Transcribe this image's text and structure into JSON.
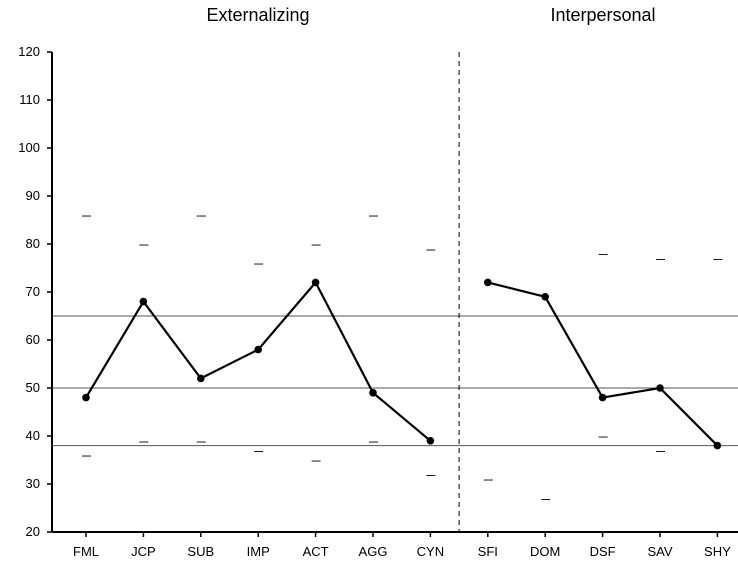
{
  "chart_data": {
    "type": "line",
    "groups": [
      {
        "title": "Externalizing",
        "categories": [
          "FML",
          "JCP",
          "SUB",
          "IMP",
          "ACT",
          "AGG",
          "CYN"
        ]
      },
      {
        "title": "Interpersonal",
        "categories": [
          "SFI",
          "DOM",
          "DSF",
          "SAV",
          "SHY"
        ]
      }
    ],
    "categories": [
      "FML",
      "JCP",
      "SUB",
      "IMP",
      "ACT",
      "AGG",
      "CYN",
      "SFI",
      "DOM",
      "DSF",
      "SAV",
      "SHY"
    ],
    "series": [
      {
        "values": [
          48,
          68,
          52,
          58,
          72,
          49,
          39,
          72,
          69,
          48,
          50,
          38
        ]
      }
    ],
    "upper_markers": [
      86,
      80,
      86,
      76,
      80,
      86,
      79,
      null,
      null,
      78,
      77,
      77
    ],
    "lower_markers": [
      36,
      39,
      39,
      37,
      35,
      39,
      32,
      31,
      27,
      40,
      37,
      null
    ],
    "reference_lines": [
      65,
      50,
      38
    ],
    "yticks": [
      20,
      30,
      40,
      50,
      60,
      70,
      80,
      90,
      100,
      110,
      120
    ],
    "ylim": [
      20,
      120
    ],
    "grid": false,
    "xlabel": "",
    "ylabel": "",
    "marker_text": "---",
    "colors": {
      "line": "#000000",
      "reference": "#555555",
      "axis": "#000000"
    }
  }
}
